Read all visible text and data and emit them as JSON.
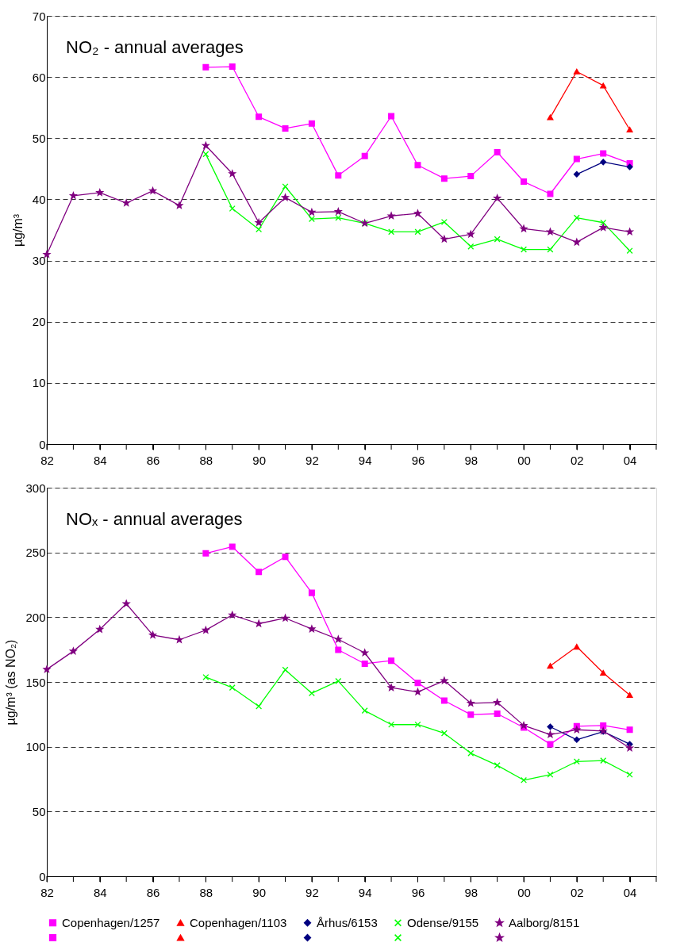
{
  "chart_data": [
    {
      "type": "line",
      "title": "NO₂ - annual averages",
      "ylabel": "µg/m³",
      "x": [
        1982,
        1983,
        1984,
        1985,
        1986,
        1987,
        1988,
        1989,
        1990,
        1991,
        1992,
        1993,
        1994,
        1995,
        1996,
        1997,
        1998,
        1999,
        2000,
        2001,
        2002,
        2003,
        2004
      ],
      "xlim": [
        1982,
        2005
      ],
      "xticks": [
        {
          "value": 1982,
          "label": "82"
        },
        {
          "value": 1983,
          "label": null
        },
        {
          "value": 1984,
          "label": "84"
        },
        {
          "value": 1985,
          "label": null
        },
        {
          "value": 1986,
          "label": "86"
        },
        {
          "value": 1987,
          "label": null
        },
        {
          "value": 1988,
          "label": "88"
        },
        {
          "value": 1989,
          "label": null
        },
        {
          "value": 1990,
          "label": "90"
        },
        {
          "value": 1991,
          "label": null
        },
        {
          "value": 1992,
          "label": "92"
        },
        {
          "value": 1993,
          "label": null
        },
        {
          "value": 1994,
          "label": "94"
        },
        {
          "value": 1995,
          "label": null
        },
        {
          "value": 1996,
          "label": "96"
        },
        {
          "value": 1997,
          "label": null
        },
        {
          "value": 1998,
          "label": "98"
        },
        {
          "value": 1999,
          "label": null
        },
        {
          "value": 2000,
          "label": "00"
        },
        {
          "value": 2001,
          "label": null
        },
        {
          "value": 2002,
          "label": "02"
        },
        {
          "value": 2003,
          "label": null
        },
        {
          "value": 2004,
          "label": "04"
        },
        {
          "value": 2005,
          "label": null
        }
      ],
      "ylim": [
        0,
        70
      ],
      "yticks": [
        0,
        10,
        20,
        30,
        40,
        50,
        60,
        70
      ],
      "grid": "y",
      "legend": "bottom",
      "series": [
        {
          "name": "Copenhagen/1257",
          "color": "#ff00ff",
          "marker": "square",
          "values": [
            null,
            null,
            null,
            null,
            null,
            null,
            61.6,
            61.7,
            53.5,
            51.6,
            52.4,
            43.9,
            47.1,
            53.6,
            45.6,
            43.4,
            43.8,
            47.7,
            42.9,
            40.9,
            46.6,
            47.5,
            45.9
          ]
        },
        {
          "name": "Copenhagen/1103",
          "color": "#ff0000",
          "marker": "triangle",
          "values": [
            null,
            null,
            null,
            null,
            null,
            null,
            null,
            null,
            null,
            null,
            null,
            null,
            null,
            null,
            null,
            null,
            null,
            null,
            null,
            53.4,
            60.9,
            58.6,
            51.4
          ]
        },
        {
          "name": "Århus/6153",
          "color": "#000080",
          "marker": "diamond",
          "values": [
            null,
            null,
            null,
            null,
            null,
            null,
            null,
            null,
            null,
            null,
            null,
            null,
            null,
            null,
            null,
            null,
            null,
            null,
            null,
            null,
            44.1,
            46.1,
            45.3
          ]
        },
        {
          "name": "Odense/9155",
          "color": "#00ff00",
          "marker": "cross",
          "values": [
            null,
            null,
            null,
            null,
            null,
            null,
            47.4,
            38.5,
            35.1,
            42.1,
            36.8,
            37.0,
            36.1,
            34.7,
            34.7,
            36.3,
            32.3,
            33.5,
            31.8,
            31.8,
            37.0,
            36.2,
            31.6
          ]
        },
        {
          "name": "Aalborg/8151",
          "color": "#800080",
          "marker": "star",
          "values": [
            31.0,
            40.6,
            41.1,
            39.4,
            41.4,
            39.0,
            48.8,
            44.2,
            36.2,
            40.3,
            37.9,
            38.0,
            36.1,
            37.3,
            37.7,
            33.5,
            34.3,
            40.2,
            35.2,
            34.7,
            33.0,
            35.4,
            34.7
          ]
        }
      ]
    },
    {
      "type": "line",
      "title": "NOₓ - annual averages",
      "ylabel": "µg/m³ (as NO₂)",
      "x": [
        1982,
        1983,
        1984,
        1985,
        1986,
        1987,
        1988,
        1989,
        1990,
        1991,
        1992,
        1993,
        1994,
        1995,
        1996,
        1997,
        1998,
        1999,
        2000,
        2001,
        2002,
        2003,
        2004
      ],
      "xlim": [
        1982,
        2005
      ],
      "xticks": [
        {
          "value": 1982,
          "label": "82"
        },
        {
          "value": 1983,
          "label": null
        },
        {
          "value": 1984,
          "label": "84"
        },
        {
          "value": 1985,
          "label": null
        },
        {
          "value": 1986,
          "label": "86"
        },
        {
          "value": 1987,
          "label": null
        },
        {
          "value": 1988,
          "label": "88"
        },
        {
          "value": 1989,
          "label": null
        },
        {
          "value": 1990,
          "label": "90"
        },
        {
          "value": 1991,
          "label": null
        },
        {
          "value": 1992,
          "label": "92"
        },
        {
          "value": 1993,
          "label": null
        },
        {
          "value": 1994,
          "label": "94"
        },
        {
          "value": 1995,
          "label": null
        },
        {
          "value": 1996,
          "label": "96"
        },
        {
          "value": 1997,
          "label": null
        },
        {
          "value": 1998,
          "label": "98"
        },
        {
          "value": 1999,
          "label": null
        },
        {
          "value": 2000,
          "label": "00"
        },
        {
          "value": 2001,
          "label": null
        },
        {
          "value": 2002,
          "label": "02"
        },
        {
          "value": 2003,
          "label": null
        },
        {
          "value": 2004,
          "label": "04"
        },
        {
          "value": 2005,
          "label": null
        }
      ],
      "ylim": [
        0,
        300
      ],
      "yticks": [
        0,
        50,
        100,
        150,
        200,
        250,
        300
      ],
      "grid": "y",
      "series": [
        {
          "color": "#ff00ff",
          "marker": "square",
          "values": [
            null,
            null,
            null,
            null,
            null,
            null,
            249.3,
            254.4,
            234.9,
            246.6,
            218.8,
            174.8,
            164.1,
            166.4,
            149.3,
            135.6,
            124.8,
            125.5,
            114.8,
            102.0,
            115.8,
            116.4,
            113.1
          ]
        },
        {
          "color": "#ff0000",
          "marker": "triangle",
          "values": [
            null,
            null,
            null,
            null,
            null,
            null,
            null,
            null,
            null,
            null,
            null,
            null,
            null,
            null,
            null,
            null,
            null,
            null,
            null,
            162.4,
            177.2,
            157.0,
            139.9
          ]
        },
        {
          "color": "#000080",
          "marker": "diamond",
          "values": [
            null,
            null,
            null,
            null,
            null,
            null,
            null,
            null,
            null,
            null,
            null,
            null,
            null,
            null,
            null,
            null,
            null,
            null,
            null,
            115.4,
            105.4,
            111.7,
            102.0
          ]
        },
        {
          "color": "#00ff00",
          "marker": "cross",
          "values": [
            null,
            null,
            null,
            null,
            null,
            null,
            153.7,
            145.6,
            131.2,
            159.4,
            141.3,
            150.7,
            127.9,
            117.1,
            117.1,
            110.4,
            95.0,
            85.6,
            74.2,
            78.5,
            88.6,
            89.3,
            78.5
          ]
        },
        {
          "color": "#800080",
          "marker": "star",
          "values": [
            159.7,
            173.8,
            190.6,
            210.4,
            186.2,
            182.6,
            190.0,
            201.7,
            195.0,
            199.3,
            190.9,
            182.9,
            172.5,
            145.6,
            142.3,
            151.0,
            133.6,
            134.2,
            116.4,
            109.4,
            113.1,
            112.1,
            99.0
          ]
        }
      ]
    }
  ]
}
